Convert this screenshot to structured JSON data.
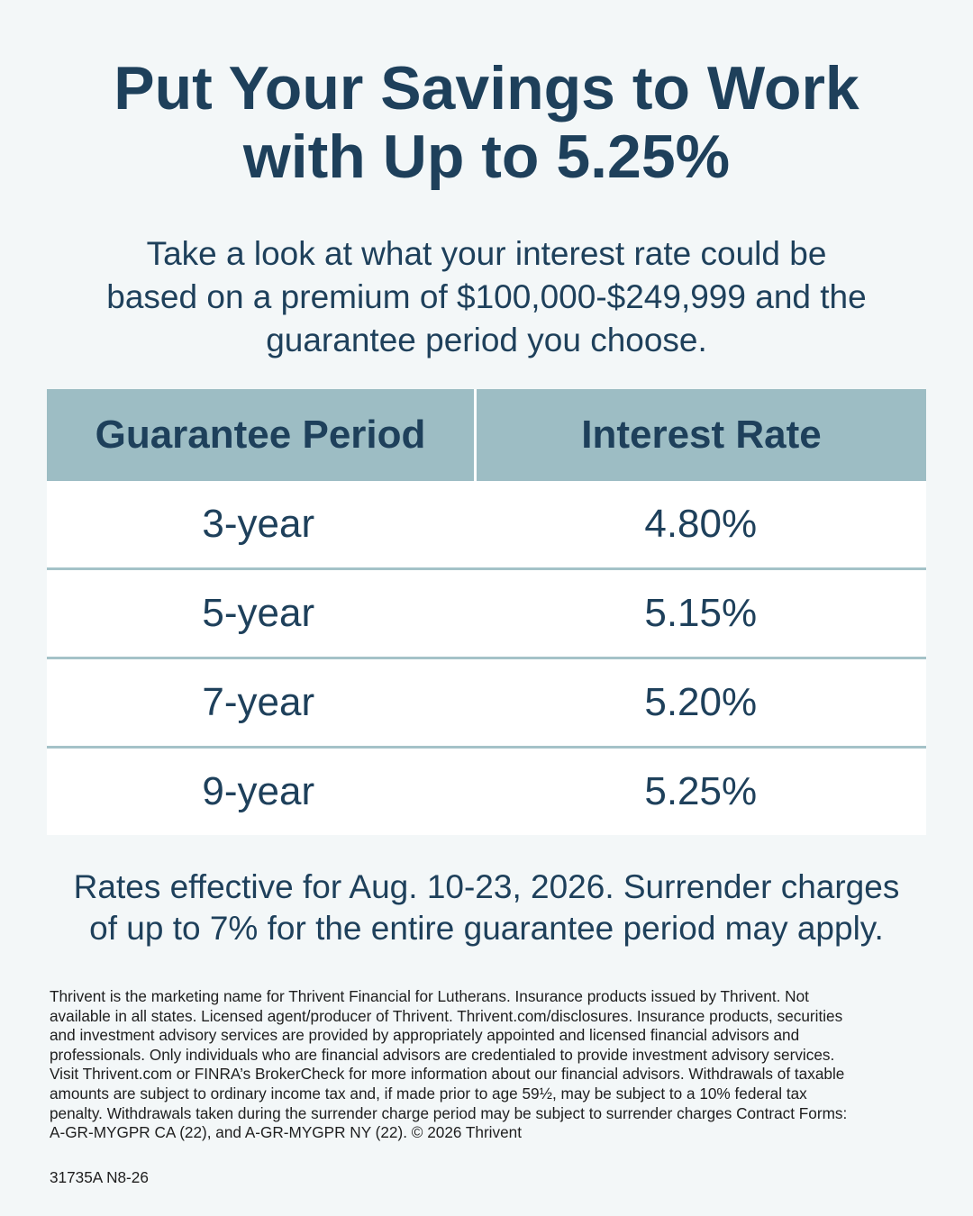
{
  "headline": {
    "line1": "Put Your Savings to Work",
    "line2": "with Up to 5.25%"
  },
  "intro": {
    "line1": "Take a look at what your interest rate could be",
    "line2": "based on a premium of $100,000-$249,999 and the",
    "line3": "guarantee period you choose."
  },
  "rate_table": {
    "headers": [
      "Guarantee Period",
      "Interest Rate"
    ],
    "rows": [
      {
        "period": "3-year",
        "rate": "4.80%"
      },
      {
        "period": "5-year",
        "rate": "5.15%"
      },
      {
        "period": "7-year",
        "rate": "5.20%"
      },
      {
        "period": "9-year",
        "rate": "5.25%"
      }
    ]
  },
  "notice": {
    "line1": "Rates effective for Aug. 10-23, 2026. Surrender charges",
    "line2": "of up to 7% for the entire guarantee period may apply."
  },
  "disclosure": [
    "Thrivent is the marketing name for Thrivent Financial for Lutherans. Insurance products issued by Thrivent. Not",
    "available in all states. Licensed agent/producer of Thrivent. Thrivent.com/disclosures. Insurance products, securities",
    "and investment advisory services are provided by appropriately appointed and licensed financial advisors and",
    "professionals. Only individuals who are financial advisors are credentialed to provide investment advisory services.",
    "Visit Thrivent.com or FINRA’s BrokerCheck for more information about our financial advisors. Withdrawals of taxable",
    "amounts are subject to ordinary income tax and, if made prior to age 59½, may be subject to a 10% federal tax",
    "penalty. Withdrawals taken during the surrender charge period may be subject to surrender charges Contract Forms:",
    "A-GR-MYGPR CA (22), and A-GR-MYGPR NY (22). © 2026 Thrivent"
  ],
  "form_code": "31735A N8-26",
  "colors": {
    "background": "#f3f7f8",
    "text": "#1e405b",
    "table_header": "#9dbdc4",
    "row_divider": "#a4c2c8"
  }
}
